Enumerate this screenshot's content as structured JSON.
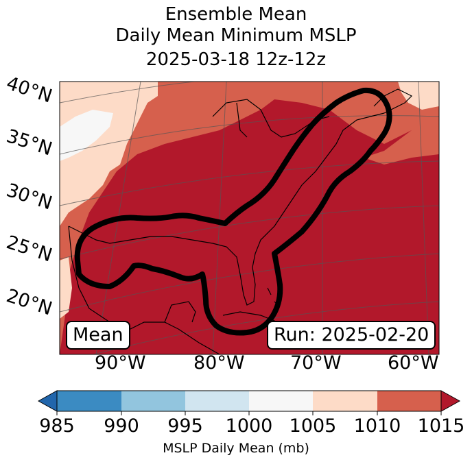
{
  "title": {
    "line1": "Ensemble Mean",
    "line2": "Daily Mean Minimum MSLP",
    "line3": "2025-03-18 12z-12z"
  },
  "map": {
    "lat_labels": [
      "40°N",
      "35°N",
      "30°N",
      "25°N",
      "20°N"
    ],
    "lon_labels": [
      "90°W",
      "80°W",
      "70°W",
      "60°W"
    ],
    "mean_label": "Mean",
    "run_label": "Run: 2025-02-20",
    "colors": {
      "c_985_990": "#3b8bc2",
      "c_990_995": "#92c5de",
      "c_995_1000": "#d1e5f0",
      "c_1000_1005": "#f7f7f7",
      "c_1005_1010": "#fddbc7",
      "c_1010_1015": "#d6604d",
      "c_above_1015": "#b2182b",
      "c_below_985": "#2166ac",
      "ocean_land_lines": "#000000"
    }
  },
  "colorbar": {
    "ticks": [
      "985",
      "990",
      "995",
      "1000",
      "1005",
      "1010",
      "1015"
    ],
    "label": "MSLP Daily Mean (mb)"
  }
}
